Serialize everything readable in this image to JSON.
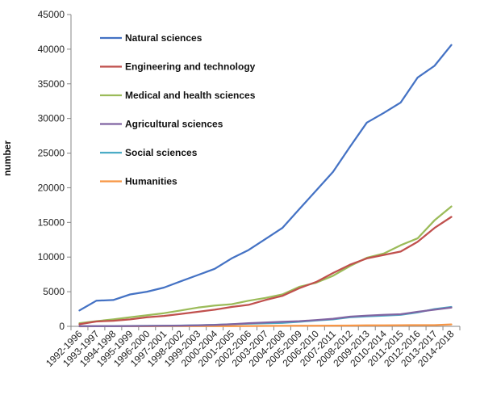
{
  "chart_data": {
    "type": "line",
    "title": "",
    "xlabel": "",
    "ylabel": "number",
    "ylim": [
      0,
      45000
    ],
    "yticks": [
      0,
      5000,
      10000,
      15000,
      20000,
      25000,
      30000,
      35000,
      40000,
      45000
    ],
    "grid": false,
    "legend_position": "top-left",
    "categories": [
      "1992-1996",
      "1993-1997",
      "1994-1998",
      "1995-1999",
      "1996-2000",
      "1997-2001",
      "1998-2002",
      "1999-2003",
      "2000-2004",
      "2001-2005",
      "2002-2006",
      "2003-2007",
      "2004-2008",
      "2005-2009",
      "2006-2010",
      "2007-2011",
      "2008-2012",
      "2009-2013",
      "2010-2014",
      "2011-2015",
      "2012-2016",
      "2013-2017",
      "2014-2018"
    ],
    "series": [
      {
        "name": "Natural sciences",
        "color": "#4472C4",
        "values": [
          2300,
          3700,
          3800,
          4600,
          5000,
          5600,
          6500,
          7400,
          8300,
          9800,
          11000,
          12600,
          14200,
          16900,
          19600,
          22300,
          25900,
          29400,
          30800,
          32300,
          35900,
          37600,
          40600
        ]
      },
      {
        "name": "Engineering and technology",
        "color": "#C0504D",
        "values": [
          300,
          700,
          800,
          1000,
          1300,
          1500,
          1800,
          2100,
          2400,
          2800,
          3100,
          3800,
          4400,
          5500,
          6400,
          7700,
          8900,
          9800,
          10300,
          10800,
          12200,
          14200,
          15800
        ]
      },
      {
        "name": "Medical and health sciences",
        "color": "#9BBB59",
        "values": [
          450,
          750,
          1000,
          1300,
          1600,
          1900,
          2300,
          2700,
          3000,
          3200,
          3700,
          4100,
          4600,
          5700,
          6300,
          7300,
          8700,
          9900,
          10500,
          11700,
          12700,
          15300,
          17300
        ]
      },
      {
        "name": "Agricultural sciences",
        "color": "#8064A2",
        "values": [
          20,
          30,
          40,
          50,
          60,
          80,
          100,
          150,
          200,
          300,
          450,
          550,
          650,
          750,
          900,
          1100,
          1400,
          1550,
          1650,
          1750,
          2100,
          2400,
          2700
        ]
      },
      {
        "name": "Social sciences",
        "color": "#4BACC6",
        "values": [
          30,
          40,
          50,
          60,
          70,
          90,
          120,
          160,
          220,
          300,
          380,
          430,
          500,
          650,
          850,
          1000,
          1300,
          1450,
          1550,
          1650,
          2000,
          2500,
          2800
        ]
      },
      {
        "name": "Humanities",
        "color": "#F79646",
        "values": [
          5,
          10,
          10,
          15,
          15,
          20,
          20,
          25,
          30,
          40,
          50,
          60,
          70,
          80,
          90,
          100,
          120,
          140,
          150,
          160,
          170,
          180,
          280
        ]
      }
    ]
  }
}
